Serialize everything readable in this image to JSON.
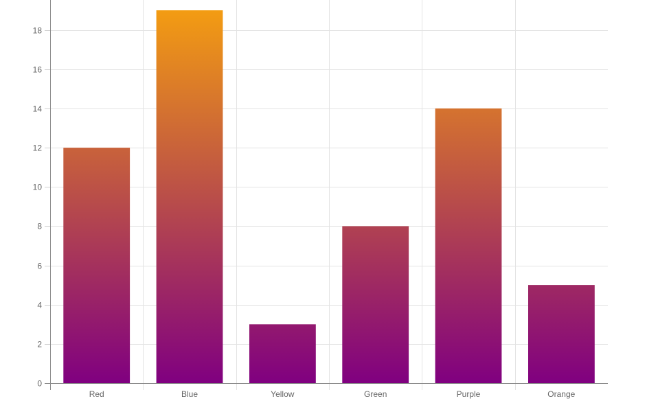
{
  "chart_data": {
    "type": "bar",
    "categories": [
      "Red",
      "Blue",
      "Yellow",
      "Green",
      "Purple",
      "Orange"
    ],
    "series": [
      {
        "values": [
          12,
          19,
          3,
          8,
          14,
          5
        ]
      }
    ],
    "title": "",
    "xlabel": "",
    "ylabel": "",
    "ylim": [
      0,
      19
    ],
    "yticks": [
      0,
      2,
      4,
      6,
      8,
      10,
      12,
      14,
      16,
      18
    ],
    "grid": true,
    "legend": "none",
    "bar_gradient": {
      "top_color": "#f39c12",
      "bottom_color": "#800080"
    },
    "colors": {
      "grid": "#e3e3e3",
      "axis": "#8c8c8c",
      "tick_text": "#666666"
    }
  }
}
